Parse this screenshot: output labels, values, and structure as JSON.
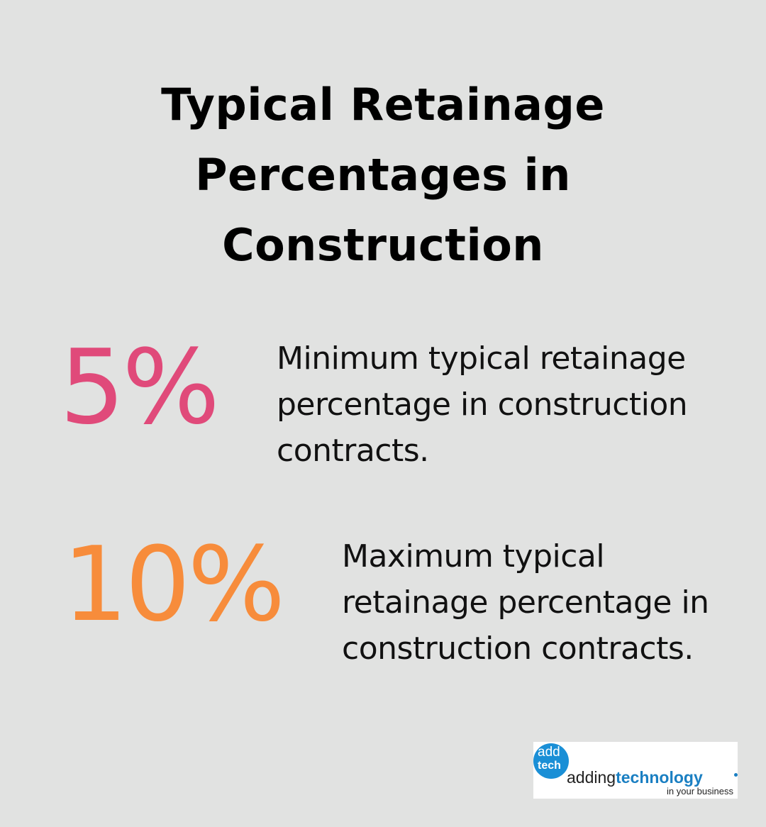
{
  "title": "Typical Retainage Percentages in Construction",
  "stats": [
    {
      "value": "5%",
      "color": "#e04a7a",
      "description": "Minimum typical retainage percentage in construction contracts."
    },
    {
      "value": "10%",
      "color": "#f78c3b",
      "description": "Maximum typical retainage percentage in construction contracts."
    }
  ],
  "logo": {
    "badge_top": "add",
    "badge_bottom": "tech",
    "word_plain": "adding",
    "word_bold": "technology",
    "tagline": "in your business",
    "brand_color": "#1a8fd6"
  }
}
